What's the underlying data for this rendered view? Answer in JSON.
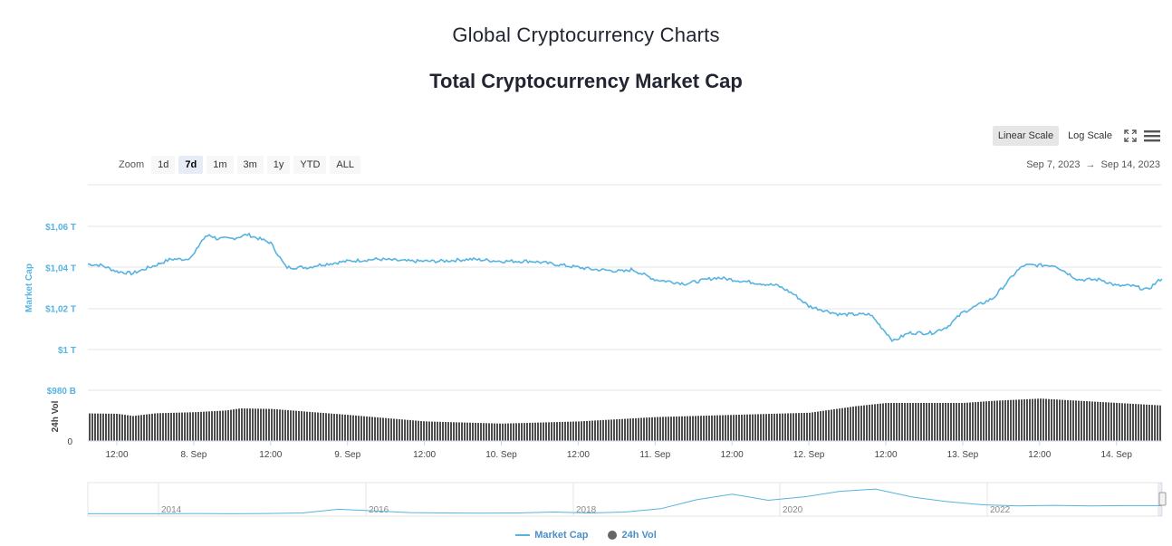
{
  "header": {
    "page_title": "Global Cryptocurrency Charts",
    "chart_title": "Total Cryptocurrency Market Cap"
  },
  "toolbar": {
    "linear_label": "Linear Scale",
    "log_label": "Log Scale",
    "active_scale": "linear",
    "fullscreen_icon": "fullscreen-icon",
    "menu_icon": "hamburger-menu-icon"
  },
  "zoom": {
    "label": "Zoom",
    "buttons": [
      "1d",
      "7d",
      "1m",
      "3m",
      "1y",
      "YTD",
      "ALL"
    ],
    "active": "7d"
  },
  "date_range": {
    "from": "Sep 7, 2023",
    "arrow": "→",
    "to": "Sep 14, 2023"
  },
  "colors": {
    "market_cap": "#57b3e0",
    "volume": "#4d4d4d",
    "grid": "#e6e6e6",
    "axis_label": "#57b3e0"
  },
  "chart_data": {
    "type": "line",
    "x_tick_labels": [
      "12:00",
      "8. Sep",
      "12:00",
      "9. Sep",
      "12:00",
      "10. Sep",
      "12:00",
      "11. Sep",
      "12:00",
      "12. Sep",
      "12:00",
      "13. Sep",
      "12:00",
      "14. Sep"
    ],
    "market_cap_axis": {
      "label": "Market Cap",
      "ticks": [
        "$980 B",
        "$1 T",
        "$1,02 T",
        "$1,04 T",
        "$1,06 T"
      ],
      "ylim": [
        980,
        1060
      ],
      "unit": "B USD"
    },
    "volume_axis": {
      "label": "24h Vol",
      "ticks": [
        "0"
      ]
    },
    "series": [
      {
        "name": "Market Cap",
        "x_days": [
          0,
          0.25,
          0.4,
          0.5,
          0.6,
          0.75,
          0.85,
          0.95,
          1.0,
          1.05,
          1.1,
          1.15,
          1.25,
          1.35,
          1.5,
          1.6,
          1.75,
          1.8,
          1.9,
          2.0,
          2.2,
          2.4,
          2.6,
          2.8,
          3.0,
          3.2,
          3.4,
          3.6,
          3.8,
          3.85,
          4.0,
          4.2,
          4.4,
          4.6,
          4.8,
          4.9,
          5.0,
          5.2,
          5.4,
          5.55,
          5.65,
          5.8,
          5.9,
          6.0,
          6.2,
          6.35,
          6.4,
          6.6,
          6.75,
          6.9,
          7.0,
          7.1,
          7.2,
          7.3,
          7.4,
          7.5,
          7.65,
          7.8,
          7.85,
          8.0
        ],
        "values": [
          1043,
          1042,
          1041,
          1038,
          1037,
          1041,
          1044,
          1044,
          1046,
          1053,
          1056,
          1054,
          1054,
          1056,
          1052,
          1040,
          1040,
          1041,
          1042,
          1043,
          1044,
          1043,
          1043,
          1044,
          1043,
          1043,
          1041,
          1039,
          1038,
          1039,
          1034,
          1032,
          1035,
          1033,
          1031,
          1027,
          1021,
          1017,
          1017,
          1004,
          1008,
          1008,
          1011,
          1018,
          1025,
          1038,
          1041,
          1041,
          1034,
          1034,
          1031,
          1031,
          1029,
          1035,
          1038,
          1042,
          1042,
          1047,
          1046,
          1045
        ]
      },
      {
        "name": "24h Vol",
        "x_days": [
          0,
          0.5,
          0.6,
          0.75,
          1.0,
          1.2,
          1.3,
          1.5,
          2.0,
          2.5,
          3.0,
          3.5,
          4.0,
          4.5,
          5.0,
          5.3,
          5.5,
          6.0,
          6.2,
          6.5,
          7.0,
          7.5,
          8.0
        ],
        "values": [
          0.52,
          0.5,
          0.46,
          0.51,
          0.53,
          0.56,
          0.6,
          0.59,
          0.48,
          0.36,
          0.32,
          0.36,
          0.44,
          0.48,
          0.52,
          0.64,
          0.7,
          0.7,
          0.74,
          0.78,
          0.7,
          0.62,
          0.58
        ],
        "unit": "relative height"
      }
    ],
    "navigator": {
      "year_labels": [
        "2014",
        "2016",
        "2018",
        "2020",
        "2022"
      ],
      "profile": [
        0.02,
        0.02,
        0.02,
        0.03,
        0.02,
        0.03,
        0.05,
        0.18,
        0.12,
        0.06,
        0.05,
        0.04,
        0.05,
        0.08,
        0.05,
        0.08,
        0.2,
        0.52,
        0.72,
        0.5,
        0.62,
        0.82,
        0.9,
        0.62,
        0.45,
        0.34,
        0.3,
        0.32,
        0.3,
        0.31,
        0.31
      ]
    }
  },
  "legend": {
    "market_cap": "Market Cap",
    "volume": "24h Vol"
  }
}
